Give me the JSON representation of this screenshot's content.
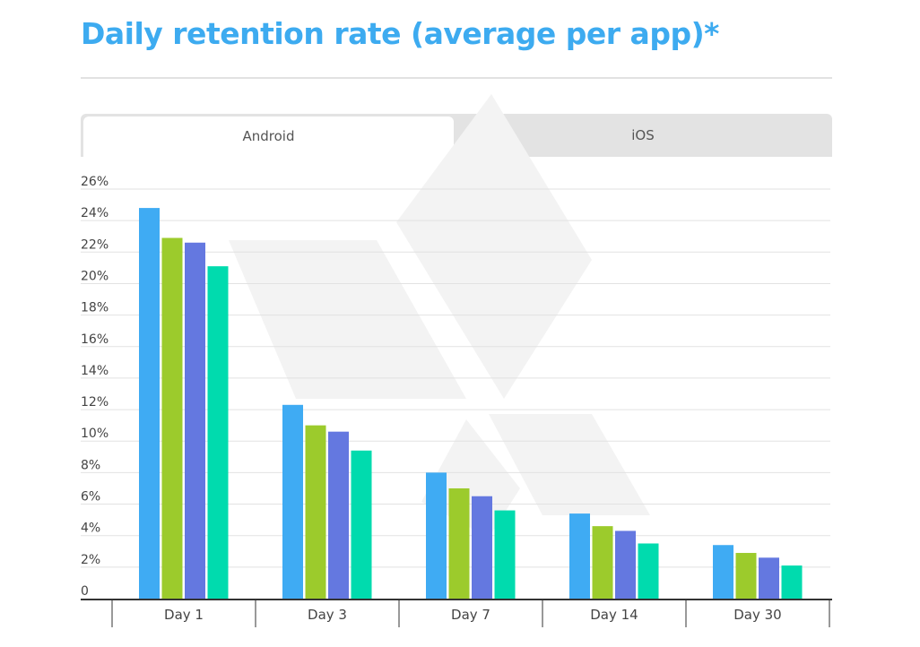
{
  "title": "Daily retention rate (average per app)*",
  "colors": {
    "title": "#3dabf0",
    "series": [
      "#3fabf3",
      "#9ccb2c",
      "#6478e0",
      "#00dbae"
    ],
    "grid": "#e2e2e2",
    "axis": "#333333",
    "tick_text": "#444444",
    "watermark": "#f3f3f3"
  },
  "tabs": [
    {
      "label": "Android",
      "active": true
    },
    {
      "label": "iOS",
      "active": false
    }
  ],
  "chart_data": {
    "type": "bar",
    "categories": [
      "Day 1",
      "Day 3",
      "Day 7",
      "Day 14",
      "Day 30"
    ],
    "series": [
      {
        "values": [
          24.8,
          12.3,
          8.0,
          5.4,
          3.4
        ]
      },
      {
        "values": [
          22.9,
          11.0,
          7.0,
          4.6,
          2.9
        ]
      },
      {
        "values": [
          22.6,
          10.6,
          6.5,
          4.3,
          2.6
        ]
      },
      {
        "values": [
          21.1,
          9.4,
          5.6,
          3.5,
          2.1
        ]
      }
    ],
    "ylim": [
      0,
      26
    ],
    "yticks": [
      {
        "value": 0,
        "label": "0"
      },
      {
        "value": 2,
        "label": "2%"
      },
      {
        "value": 4,
        "label": "4%"
      },
      {
        "value": 6,
        "label": "6%"
      },
      {
        "value": 8,
        "label": "8%"
      },
      {
        "value": 10,
        "label": "10%"
      },
      {
        "value": 12,
        "label": "12%"
      },
      {
        "value": 14,
        "label": "14%"
      },
      {
        "value": 16,
        "label": "16%"
      },
      {
        "value": 18,
        "label": "18%"
      },
      {
        "value": 20,
        "label": "20%"
      },
      {
        "value": 22,
        "label": "22%"
      },
      {
        "value": 24,
        "label": "24%"
      },
      {
        "value": 26,
        "label": "26%"
      }
    ],
    "grid": true,
    "legend": "none"
  }
}
